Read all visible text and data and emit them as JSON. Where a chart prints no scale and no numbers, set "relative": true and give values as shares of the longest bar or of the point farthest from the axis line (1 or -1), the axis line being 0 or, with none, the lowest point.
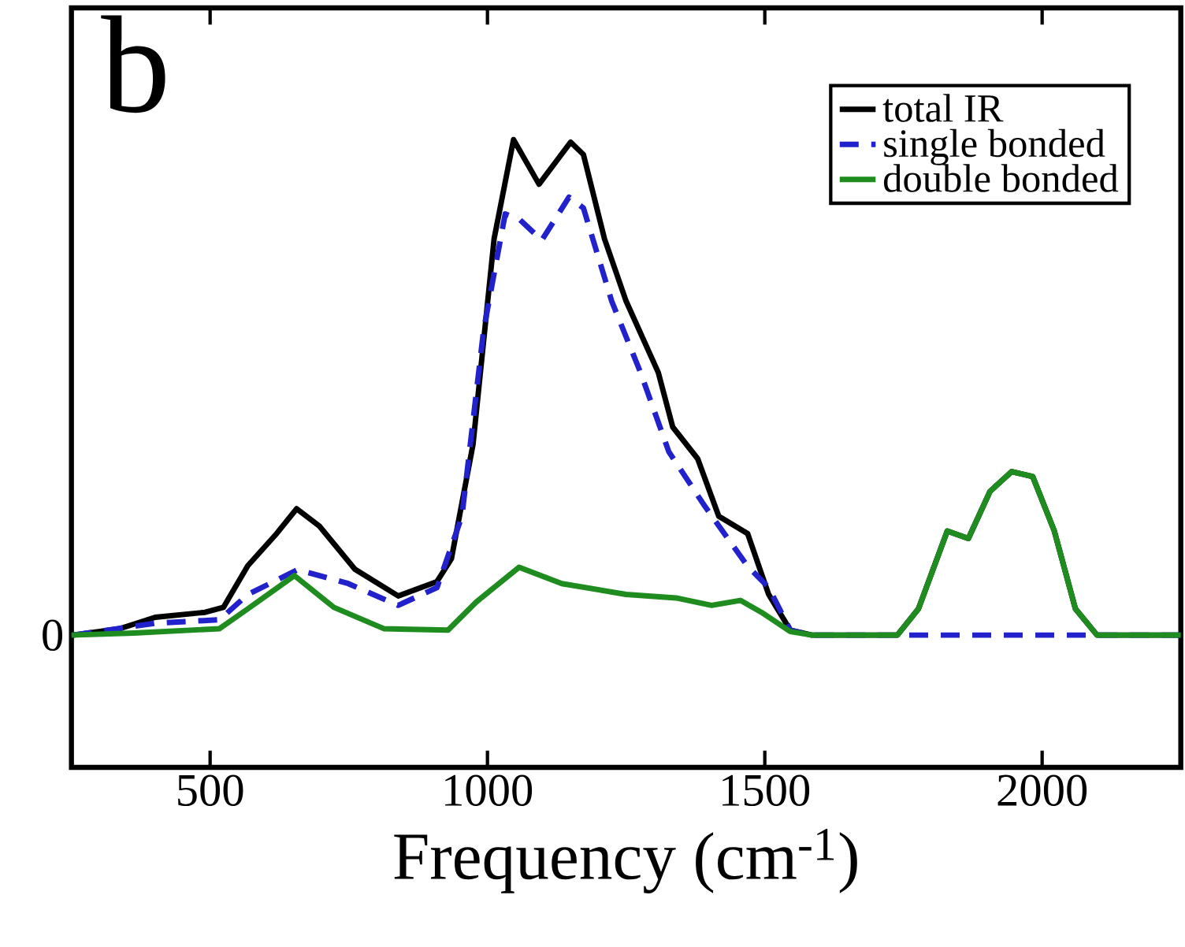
{
  "chart_data": {
    "type": "line",
    "relative": true,
    "xlabel": "Frequency (cm$^{-1}$)",
    "annotations": [
      "b",
      "0"
    ],
    "xlim": [
      250,
      2250
    ],
    "xticks": [
      500,
      1000,
      1500,
      2000
    ],
    "legend": "top right",
    "series": [
      {
        "name": "total IR",
        "color": "#000000",
        "line_style": "solid",
        "x": [
          253,
          337,
          401,
          491,
          524,
          568,
          620,
          656,
          697,
          761,
          839,
          909,
          935,
          974,
          1012,
          1047,
          1093,
          1150,
          1173,
          1211,
          1250,
          1308,
          1334,
          1379,
          1417,
          1469,
          1507,
          1546,
          1585,
          1739,
          1777,
          1829,
          1867,
          1906,
          1945,
          1983,
          2022,
          2060,
          2099,
          2250
        ],
        "values": [
          0,
          0.013,
          0.036,
          0.046,
          0.056,
          0.14,
          0.205,
          0.255,
          0.22,
          0.133,
          0.079,
          0.108,
          0.154,
          0.385,
          0.8,
          1,
          0.91,
          0.995,
          0.97,
          0.8,
          0.674,
          0.53,
          0.42,
          0.356,
          0.24,
          0.205,
          0.082,
          0.01,
          0,
          0,
          0.053,
          0.21,
          0.195,
          0.29,
          0.33,
          0.32,
          0.21,
          0.053,
          0,
          0
        ]
      },
      {
        "name": "single bonded",
        "color": "#2222cc",
        "line_style": "dashed",
        "x": [
          253,
          401,
          517,
          568,
          658,
          749,
          839,
          909,
          954,
          993,
          1032,
          1057,
          1098,
          1147,
          1173,
          1224,
          1276,
          1327,
          1392,
          1469,
          1507,
          1546,
          1585,
          2250
        ],
        "values": [
          0,
          0.024,
          0.031,
          0.082,
          0.132,
          0.104,
          0.06,
          0.096,
          0.24,
          0.615,
          0.85,
          0.84,
          0.797,
          0.884,
          0.862,
          0.674,
          0.53,
          0.37,
          0.26,
          0.139,
          0.096,
          0.01,
          0,
          0
        ]
      },
      {
        "name": "double bonded",
        "color": "#1e8c1e",
        "line_style": "solid",
        "x": [
          250,
          363,
          517,
          568,
          652,
          723,
          813,
          929,
          980,
          1057,
          1134,
          1250,
          1340,
          1404,
          1456,
          1494,
          1546,
          1585,
          1739,
          1777,
          1829,
          1867,
          1906,
          1945,
          1983,
          2022,
          2060,
          2099,
          2250
        ],
        "values": [
          0,
          0.004,
          0.013,
          0.053,
          0.12,
          0.056,
          0.013,
          0.01,
          0.067,
          0.137,
          0.104,
          0.082,
          0.075,
          0.06,
          0.07,
          0.046,
          0.007,
          0,
          0,
          0.053,
          0.21,
          0.195,
          0.29,
          0.33,
          0.32,
          0.21,
          0.053,
          0,
          0
        ]
      }
    ]
  }
}
